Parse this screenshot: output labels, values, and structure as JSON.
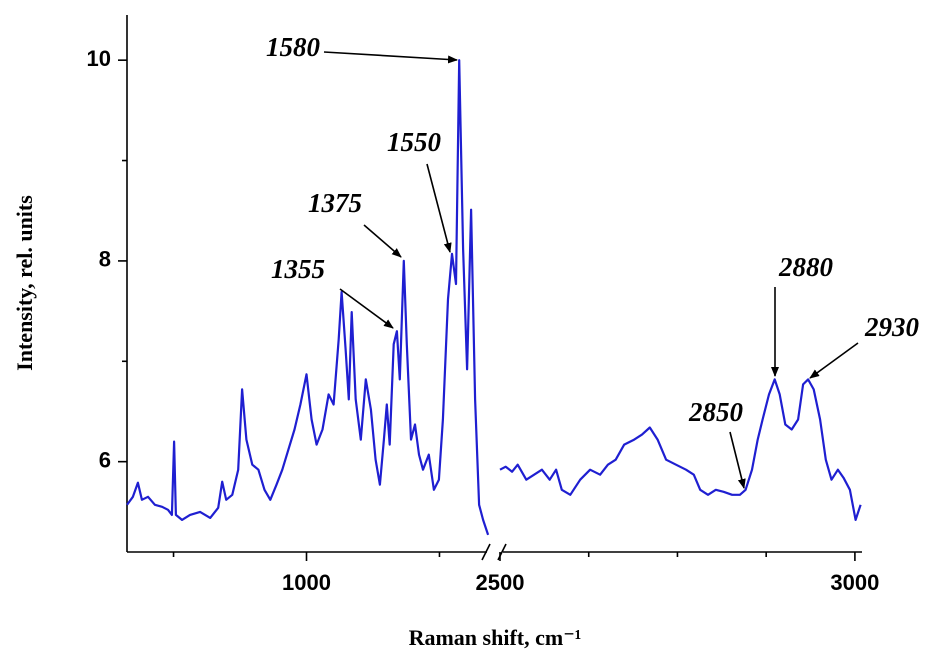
{
  "chart_data": {
    "type": "line",
    "y_label": "Intensity, rel. units",
    "x_label": "Raman shift, cm⁻¹",
    "xlim": [
      325,
      3010
    ],
    "x_break": [
      1690,
      2500
    ],
    "xticks": [
      1000,
      2500,
      3000
    ],
    "xminorticks": [
      500,
      1500,
      2625,
      2750,
      2875
    ],
    "ylim": [
      5.1,
      10.45
    ],
    "yticks": [
      6,
      8,
      10
    ],
    "yminorticks": [
      7,
      9
    ],
    "color": "#1f1fd1",
    "annotations": [
      "1580",
      "1550",
      "1375",
      "1355",
      "2850",
      "2880",
      "2930"
    ],
    "series": [
      {
        "x": [
          325,
          347,
          366,
          381,
          404,
          430,
          457,
          479,
          494,
          502,
          509,
          532,
          562,
          600,
          638,
          668,
          683,
          698,
          721,
          743,
          758,
          774,
          796,
          819,
          842,
          864,
          887,
          909,
          932,
          955,
          977,
          1000,
          1019,
          1038,
          1060,
          1083,
          1102,
          1121,
          1132,
          1147,
          1159,
          1170,
          1185,
          1204,
          1223,
          1242,
          1260,
          1276,
          1291,
          1302,
          1313,
          1328,
          1340,
          1351,
          1366,
          1377,
          1393,
          1408,
          1423,
          1438,
          1460,
          1479,
          1498,
          1513,
          1532,
          1547,
          1562,
          1574,
          1589,
          1604,
          1619,
          1634,
          1649,
          1664,
          1683
        ],
        "values": [
          5.57,
          5.65,
          5.79,
          5.62,
          5.65,
          5.57,
          5.55,
          5.52,
          5.47,
          6.2,
          5.47,
          5.42,
          5.47,
          5.5,
          5.44,
          5.54,
          5.8,
          5.62,
          5.67,
          5.92,
          6.72,
          6.22,
          5.97,
          5.92,
          5.72,
          5.62,
          5.77,
          5.92,
          6.12,
          6.32,
          6.57,
          6.87,
          6.42,
          6.17,
          6.32,
          6.67,
          6.57,
          7.22,
          7.69,
          7.12,
          6.62,
          7.49,
          6.62,
          6.22,
          6.82,
          6.52,
          6.02,
          5.77,
          6.22,
          6.57,
          6.17,
          7.17,
          7.3,
          6.82,
          8.0,
          7.17,
          6.22,
          6.37,
          6.07,
          5.92,
          6.07,
          5.72,
          5.82,
          6.42,
          7.62,
          8.07,
          7.77,
          10.0,
          8.12,
          6.92,
          8.51,
          6.62,
          5.57,
          5.42,
          5.27
        ]
      },
      {
        "x": [
          2500,
          2508,
          2517,
          2525,
          2537,
          2548,
          2559,
          2570,
          2579,
          2587,
          2599,
          2613,
          2627,
          2641,
          2652,
          2663,
          2675,
          2689,
          2700,
          2711,
          2722,
          2734,
          2748,
          2762,
          2773,
          2782,
          2793,
          2804,
          2815,
          2827,
          2838,
          2846,
          2855,
          2863,
          2870,
          2879,
          2887,
          2894,
          2902,
          2911,
          2920,
          2927,
          2934,
          2942,
          2951,
          2959,
          2967,
          2976,
          2984,
          2993,
          3001,
          3008
        ],
        "values": [
          5.92,
          5.95,
          5.9,
          5.97,
          5.82,
          5.87,
          5.92,
          5.82,
          5.92,
          5.72,
          5.67,
          5.82,
          5.92,
          5.87,
          5.97,
          6.02,
          6.17,
          6.22,
          6.27,
          6.34,
          6.22,
          6.02,
          5.97,
          5.92,
          5.87,
          5.72,
          5.67,
          5.72,
          5.7,
          5.67,
          5.67,
          5.72,
          5.92,
          6.22,
          6.42,
          6.67,
          6.82,
          6.67,
          6.37,
          6.32,
          6.42,
          6.77,
          6.82,
          6.72,
          6.42,
          6.02,
          5.82,
          5.92,
          5.84,
          5.72,
          5.42,
          5.57
        ]
      }
    ]
  }
}
